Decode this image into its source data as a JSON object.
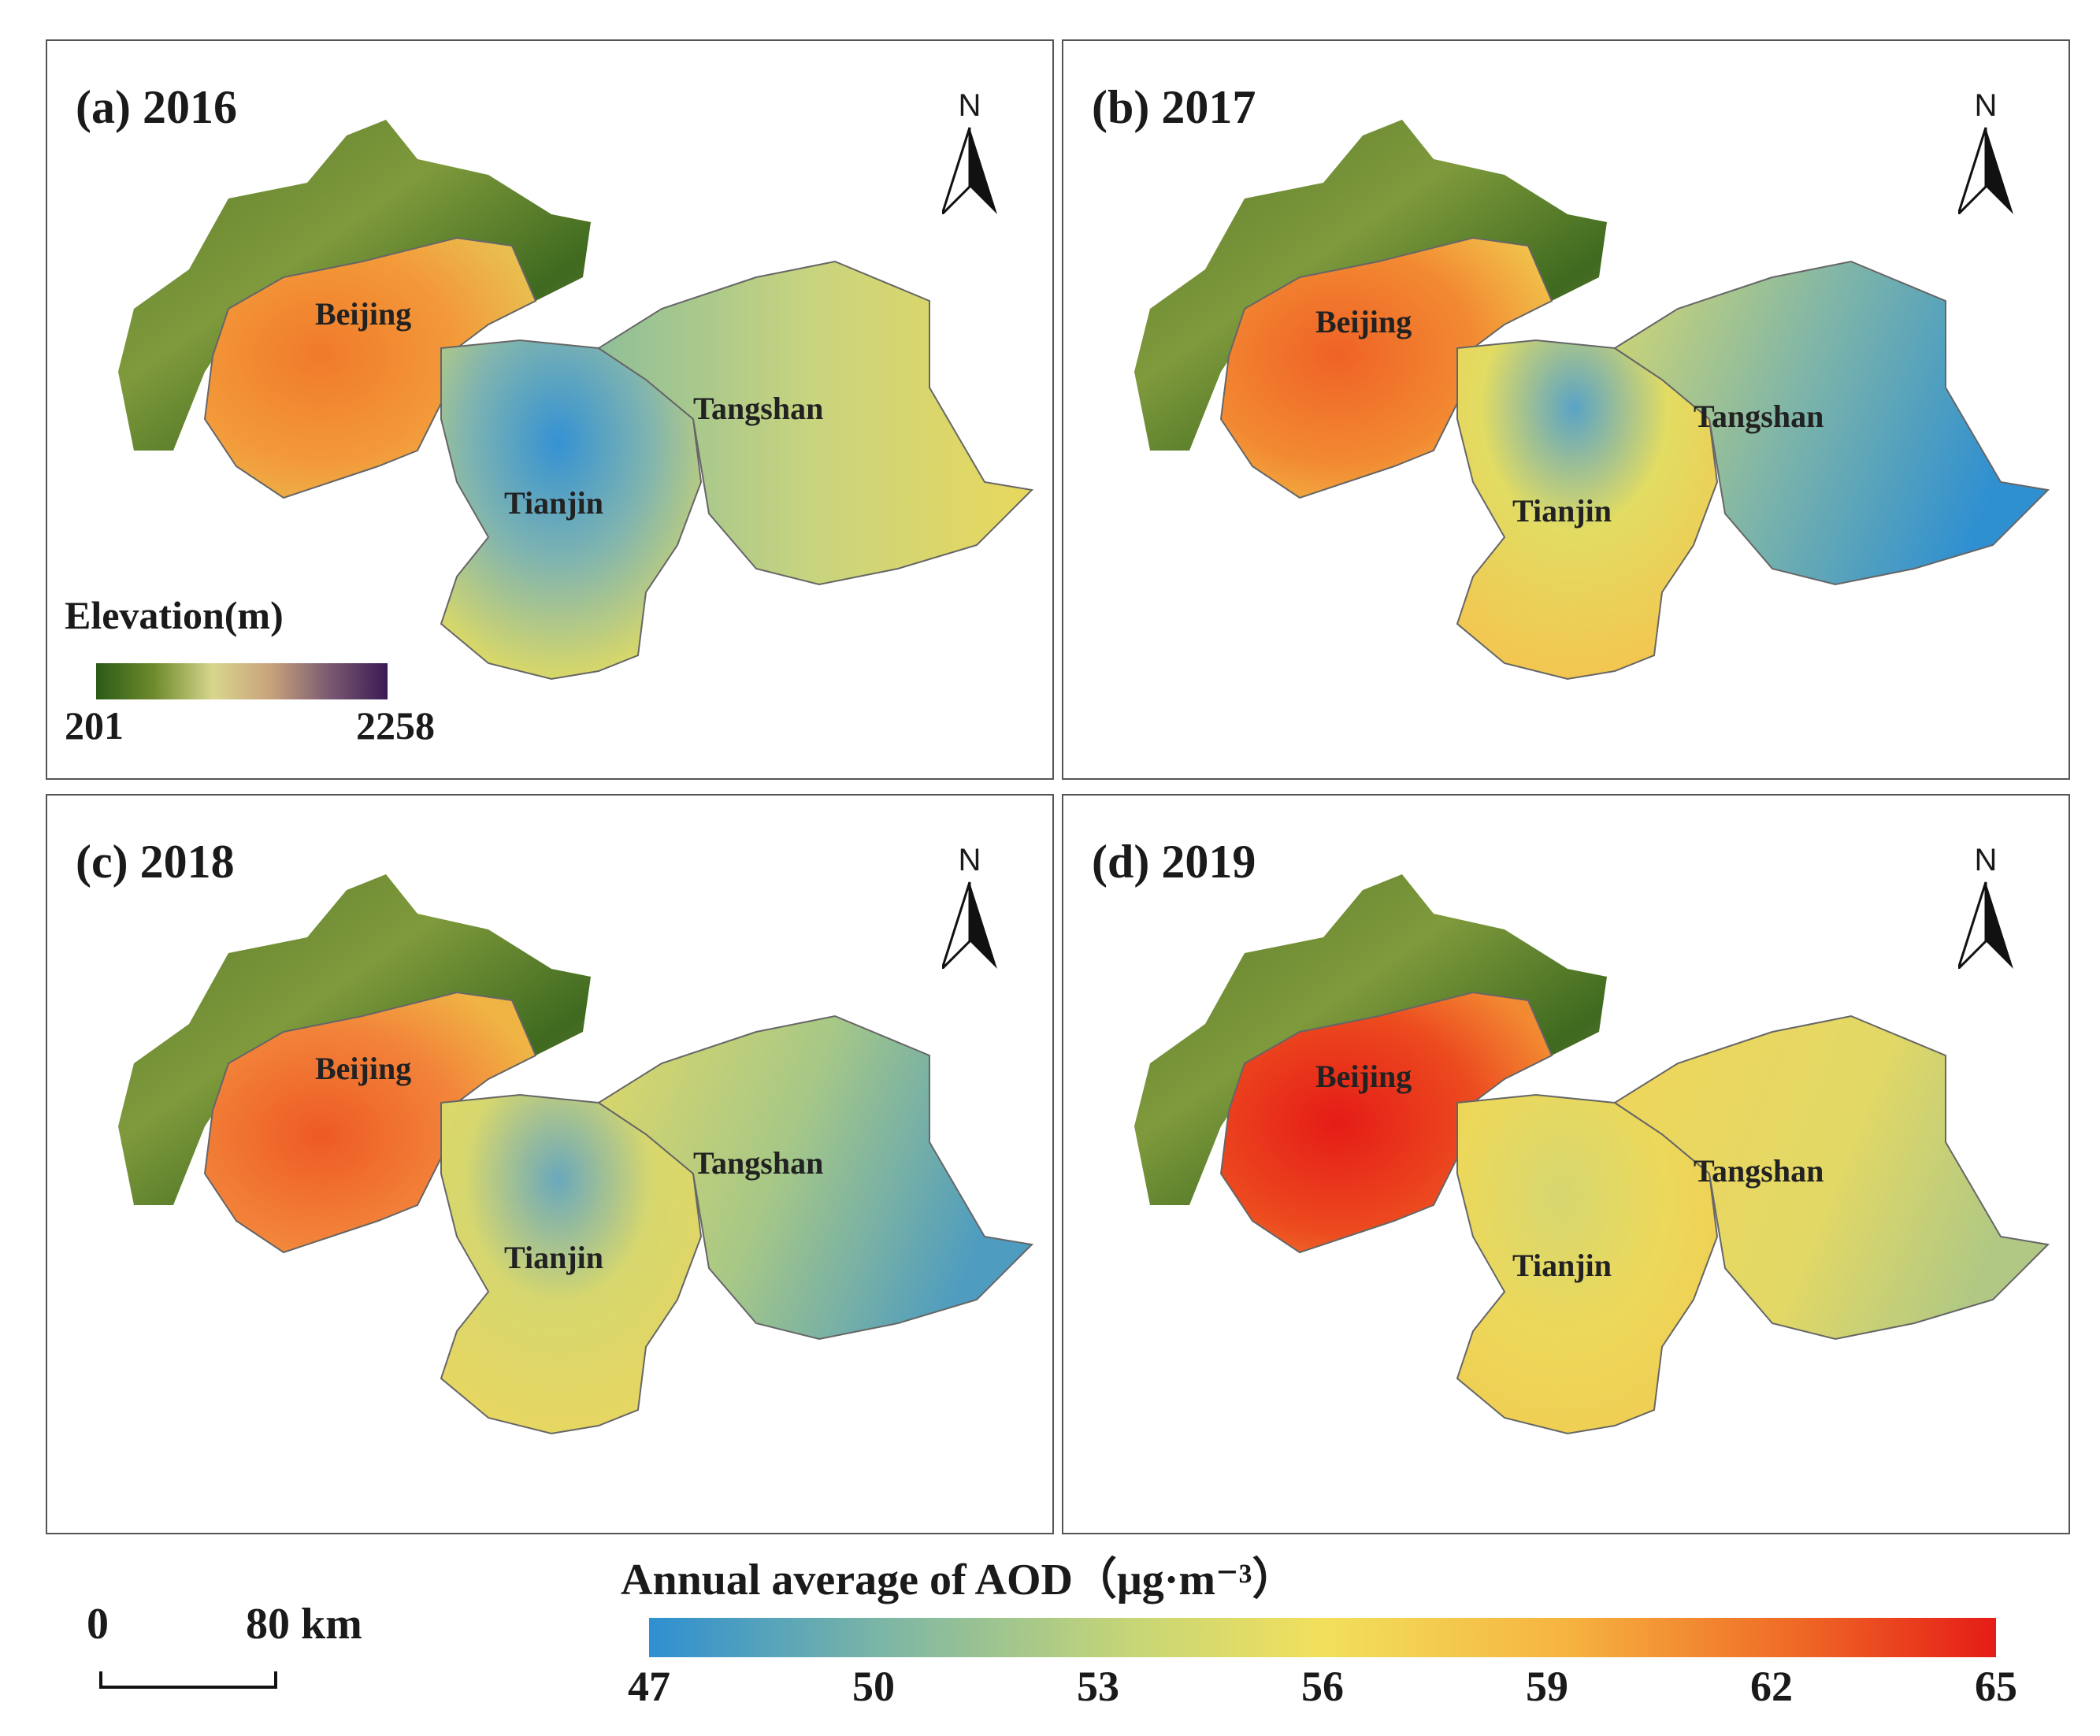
{
  "panels": [
    {
      "title": "(a) 2016",
      "year": 2016
    },
    {
      "title": "(b) 2017",
      "year": 2017
    },
    {
      "title": "(c) 2018",
      "year": 2018
    },
    {
      "title": "(d) 2019",
      "year": 2019
    }
  ],
  "cities": {
    "beijing": "Beijing",
    "tianjin": "Tianjin",
    "tangshan": "Tangshan"
  },
  "north_arrow": {
    "label": "N"
  },
  "elevation_legend": {
    "title": "Elevation(m)",
    "min": "201",
    "max": "2258"
  },
  "scale_bar": {
    "zero": "0",
    "distance": "80 km"
  },
  "aod_legend": {
    "title": "Annual average of AOD（μg·m⁻³）",
    "ticks": [
      "47",
      "50",
      "53",
      "56",
      "59",
      "62",
      "65"
    ]
  },
  "colors": {
    "low": "#2e8fd1",
    "mid": "#f2e05d",
    "high": "#e51c17",
    "terrain_dark": "#2b5a17",
    "terrain_high": "#3b1a55"
  }
}
